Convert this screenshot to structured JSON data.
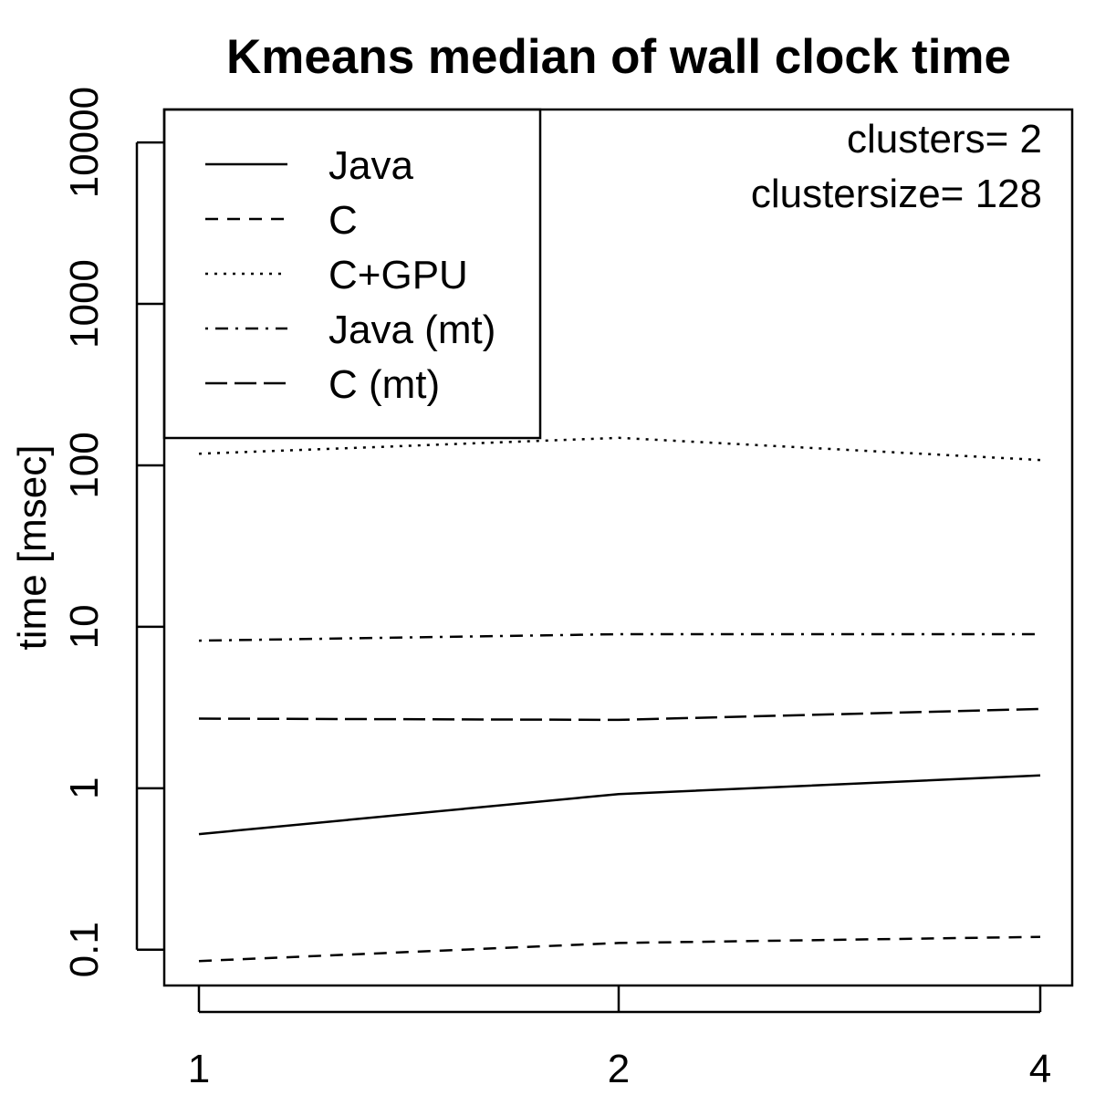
{
  "chart_data": {
    "type": "line",
    "title": "Kmeans median of wall clock time",
    "xlabel": "",
    "ylabel": "time [msec]",
    "yscale": "log",
    "x": [
      1,
      2,
      4
    ],
    "x_tick_labels": [
      "1",
      "2",
      "4"
    ],
    "y_ticks": [
      0.1,
      1,
      10,
      100,
      1000,
      10000
    ],
    "y_tick_labels": [
      "0.1",
      "1",
      "10",
      "100",
      "1000",
      "10000"
    ],
    "ylim": [
      0.06,
      16000
    ],
    "legend_position": "top-left",
    "series": [
      {
        "name": "Java",
        "linestyle": "solid",
        "values": [
          0.52,
          0.92,
          1.2
        ]
      },
      {
        "name": "C",
        "linestyle": "dashed",
        "values": [
          0.085,
          0.11,
          0.12
        ]
      },
      {
        "name": "C+GPU",
        "linestyle": "dotted",
        "values": [
          118,
          148,
          108
        ]
      },
      {
        "name": "Java (mt)",
        "linestyle": "dotdash",
        "values": [
          8.2,
          9.0,
          9.0
        ]
      },
      {
        "name": "C (mt)",
        "linestyle": "longdash",
        "values": [
          2.7,
          2.65,
          3.1
        ]
      }
    ],
    "annotations": [
      "clusters= 2",
      "clustersize= 128"
    ]
  }
}
